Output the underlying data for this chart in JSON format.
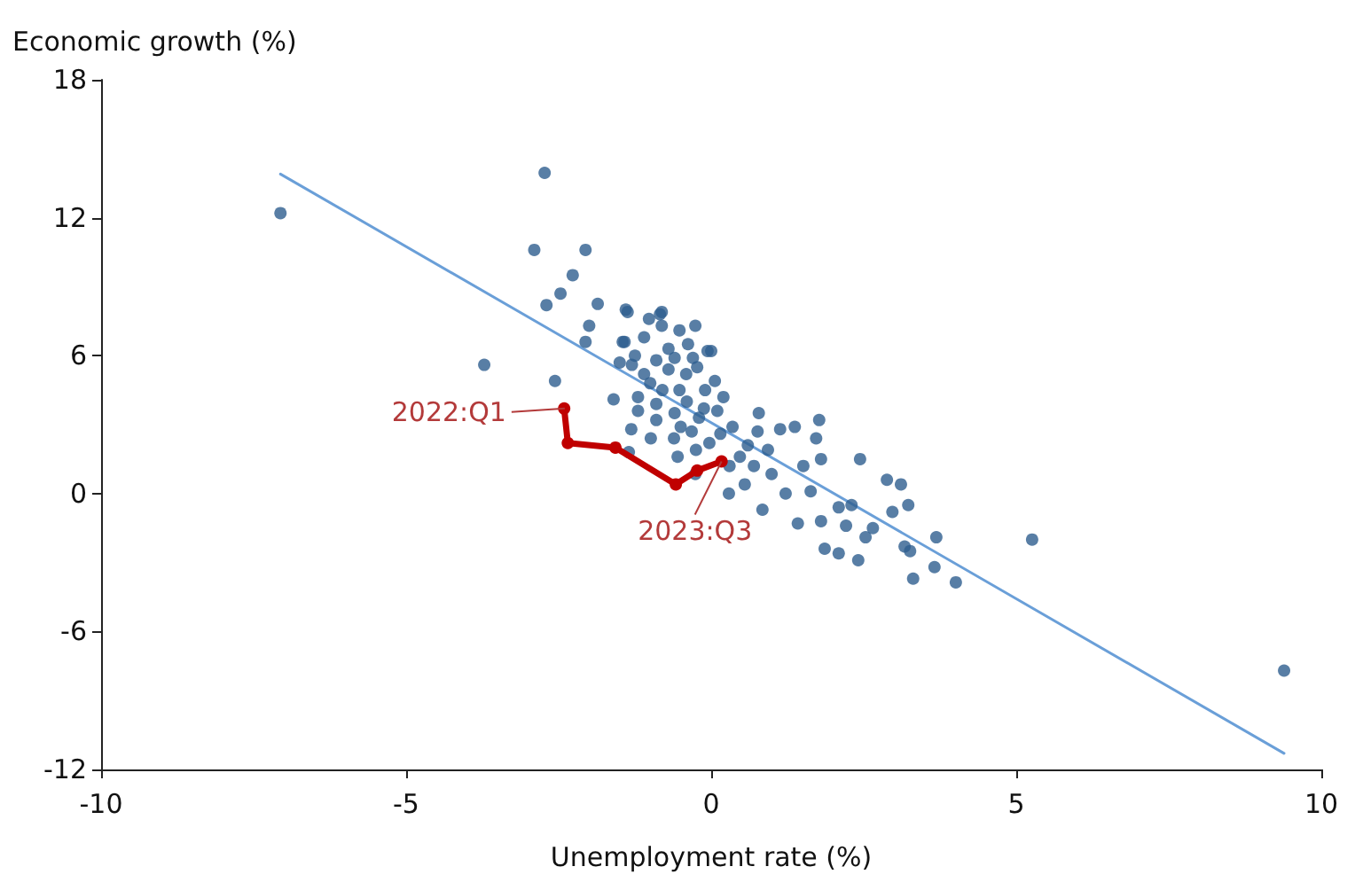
{
  "chart_data": {
    "type": "scatter",
    "xlabel": "Unemployment rate (%)",
    "ylabel": "Economic growth (%)",
    "xlim": [
      -10,
      10
    ],
    "xticks": [
      -10,
      -5,
      0,
      5,
      10
    ],
    "ylim": [
      -12,
      18
    ],
    "yticks": [
      -12,
      -6,
      0,
      6,
      12,
      18
    ],
    "grid": false,
    "annotations": [
      {
        "text": "2022:Q1",
        "x": -2.4,
        "y": 3.7
      },
      {
        "text": "2023:Q3",
        "x": 0.17,
        "y": 1.4
      }
    ],
    "series": [
      {
        "color": "#2e5e8e",
        "marker": "circle",
        "x": [
          -7.06,
          -2.73,
          -3.72,
          5.26,
          9.39,
          -2.9,
          -2.06,
          -2.27,
          -2.47,
          -2.7,
          -1.86,
          -2.0,
          -2.06,
          -2.56,
          -1.4,
          -1.02,
          -0.84,
          -1.45,
          0,
          -1.3,
          -1.37,
          -0.81,
          -0.81,
          -0.52,
          -0.26,
          -1.42,
          -1.1,
          -0.38,
          -0.06,
          -1.25,
          -0.9,
          -0.6,
          -1.1,
          -0.7,
          -0.41,
          -0.23,
          0.06,
          0.2,
          -1.2,
          -0.9,
          -0.52,
          -0.12,
          -1.31,
          -0.99,
          -0.61,
          -0.32,
          -0.03,
          0.35,
          0.47,
          0.78,
          0.76,
          1.13,
          1.37,
          1.77,
          1.72,
          0.93,
          0.7,
          0.99,
          1.22,
          1.51,
          1.63,
          1.8,
          2.44,
          0.84,
          1.42,
          1.8,
          2.09,
          2.3,
          2.21,
          2.53,
          2.65,
          2.88,
          3.11,
          2.97,
          3.23,
          3.26,
          3.31,
          1.86,
          2.09,
          2.41,
          3.69,
          0.29,
          -0.26,
          4.01,
          3.66,
          3.17,
          -0.8,
          -0.6,
          -0.4,
          -0.9,
          -0.5,
          -0.2,
          -0.1,
          0.1,
          -0.3,
          -0.7,
          -1.0,
          -1.2,
          -0.55,
          -0.25,
          0.15,
          0.3,
          0.55,
          0.6,
          -1.5,
          -1.6,
          -1.35
        ],
        "values": [
          12.2,
          13.95,
          5.6,
          -2.0,
          -7.7,
          10.6,
          10.6,
          9.5,
          8.7,
          8.2,
          8.25,
          7.3,
          6.6,
          4.9,
          8.0,
          7.6,
          7.8,
          6.6,
          6.2,
          5.6,
          7.9,
          7.9,
          7.3,
          7.1,
          7.3,
          6.6,
          6.8,
          6.5,
          6.2,
          6.0,
          5.8,
          5.9,
          5.2,
          5.4,
          5.2,
          5.5,
          4.9,
          4.2,
          4.2,
          3.9,
          4.5,
          3.7,
          2.8,
          2.4,
          2.4,
          2.7,
          2.2,
          2.9,
          1.6,
          3.5,
          2.7,
          2.8,
          2.9,
          3.2,
          2.4,
          1.9,
          1.2,
          0.85,
          0.0,
          1.2,
          0.1,
          1.5,
          1.5,
          -0.7,
          -1.3,
          -1.2,
          -0.6,
          -0.5,
          -1.4,
          -1.9,
          -1.5,
          0.6,
          0.4,
          -0.8,
          -0.5,
          -2.5,
          -3.7,
          -2.4,
          -2.6,
          -2.9,
          -1.9,
          0.0,
          0.85,
          -3.86,
          -3.2,
          -2.3,
          4.5,
          3.5,
          4.0,
          3.2,
          2.9,
          3.3,
          4.5,
          3.6,
          5.9,
          6.3,
          4.8,
          3.6,
          1.6,
          1.9,
          2.6,
          1.2,
          0.4,
          2.1,
          5.7,
          4.1,
          1.8
        ]
      },
      {
        "type": "line",
        "color": "#6a9fd8",
        "marker": "none",
        "x": [
          -7.06,
          9.39
        ],
        "values": [
          13.9,
          -11.3
        ]
      },
      {
        "type": "line",
        "color": "#c00000",
        "marker": "circle",
        "line_style": "solid",
        "x": [
          -2.41,
          -2.35,
          -1.57,
          -0.58,
          -0.23,
          0.17
        ],
        "values": [
          3.7,
          2.2,
          2.0,
          0.4,
          1.0,
          1.4
        ]
      }
    ]
  }
}
